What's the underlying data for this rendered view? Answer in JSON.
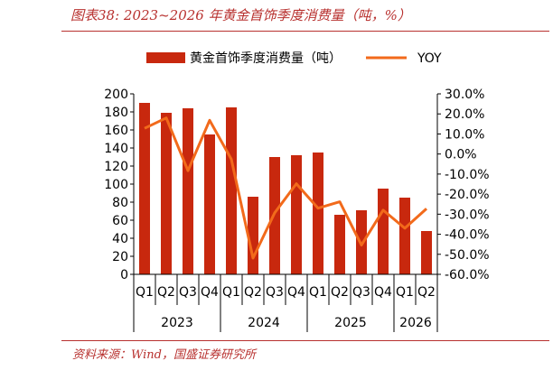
{
  "figure_title": "图表38: 2023~2026 年黄金首饰季度消费量（吨，%）",
  "source_note": "资料来源：Wind，国盛证券研究所",
  "colors": {
    "bar": "#c8280e",
    "line": "#f26a1b",
    "accent": "#b8312f"
  },
  "chart_data": {
    "type": "bar",
    "title": "",
    "xlabel": "",
    "ylabel": "",
    "categories": [
      "Q1",
      "Q2",
      "Q3",
      "Q4",
      "Q1",
      "Q2",
      "Q3",
      "Q4",
      "Q1",
      "Q2",
      "Q3",
      "Q4",
      "Q1",
      "Q2"
    ],
    "year_groups": [
      {
        "label": "2023",
        "count": 4
      },
      {
        "label": "2024",
        "count": 4
      },
      {
        "label": "2025",
        "count": 4
      },
      {
        "label": "2026",
        "count": 2
      }
    ],
    "series": [
      {
        "name": "黄金首饰季度消费量（吨）",
        "type": "bar",
        "axis": "left",
        "values": [
          190,
          179,
          184,
          155,
          185,
          86,
          130,
          132,
          135,
          66,
          71,
          95,
          85,
          48
        ]
      },
      {
        "name": "YOY",
        "type": "line",
        "axis": "right",
        "values": [
          12.8,
          18.0,
          -8.3,
          16.8,
          -2.6,
          -51.9,
          -29.3,
          -14.8,
          -27.0,
          -23.8,
          -45.4,
          -28.0,
          -37.0,
          -27.3
        ]
      }
    ],
    "ylim_left": [
      0,
      200
    ],
    "yticks_left": [
      "200",
      "180",
      "160",
      "140",
      "120",
      "100",
      "80",
      "60",
      "40",
      "20",
      "0"
    ],
    "ylim_right": [
      -60,
      30
    ],
    "yticks_right": [
      "30.0%",
      "20.0%",
      "10.0%",
      "0.0%",
      "-10.0%",
      "-20.0%",
      "-30.0%",
      "-40.0%",
      "-50.0%",
      "-60.0%"
    ],
    "legend": {
      "position": "top",
      "bar_label": "黄金首饰季度消费量（吨）",
      "line_label": "YOY"
    },
    "grid": false
  }
}
